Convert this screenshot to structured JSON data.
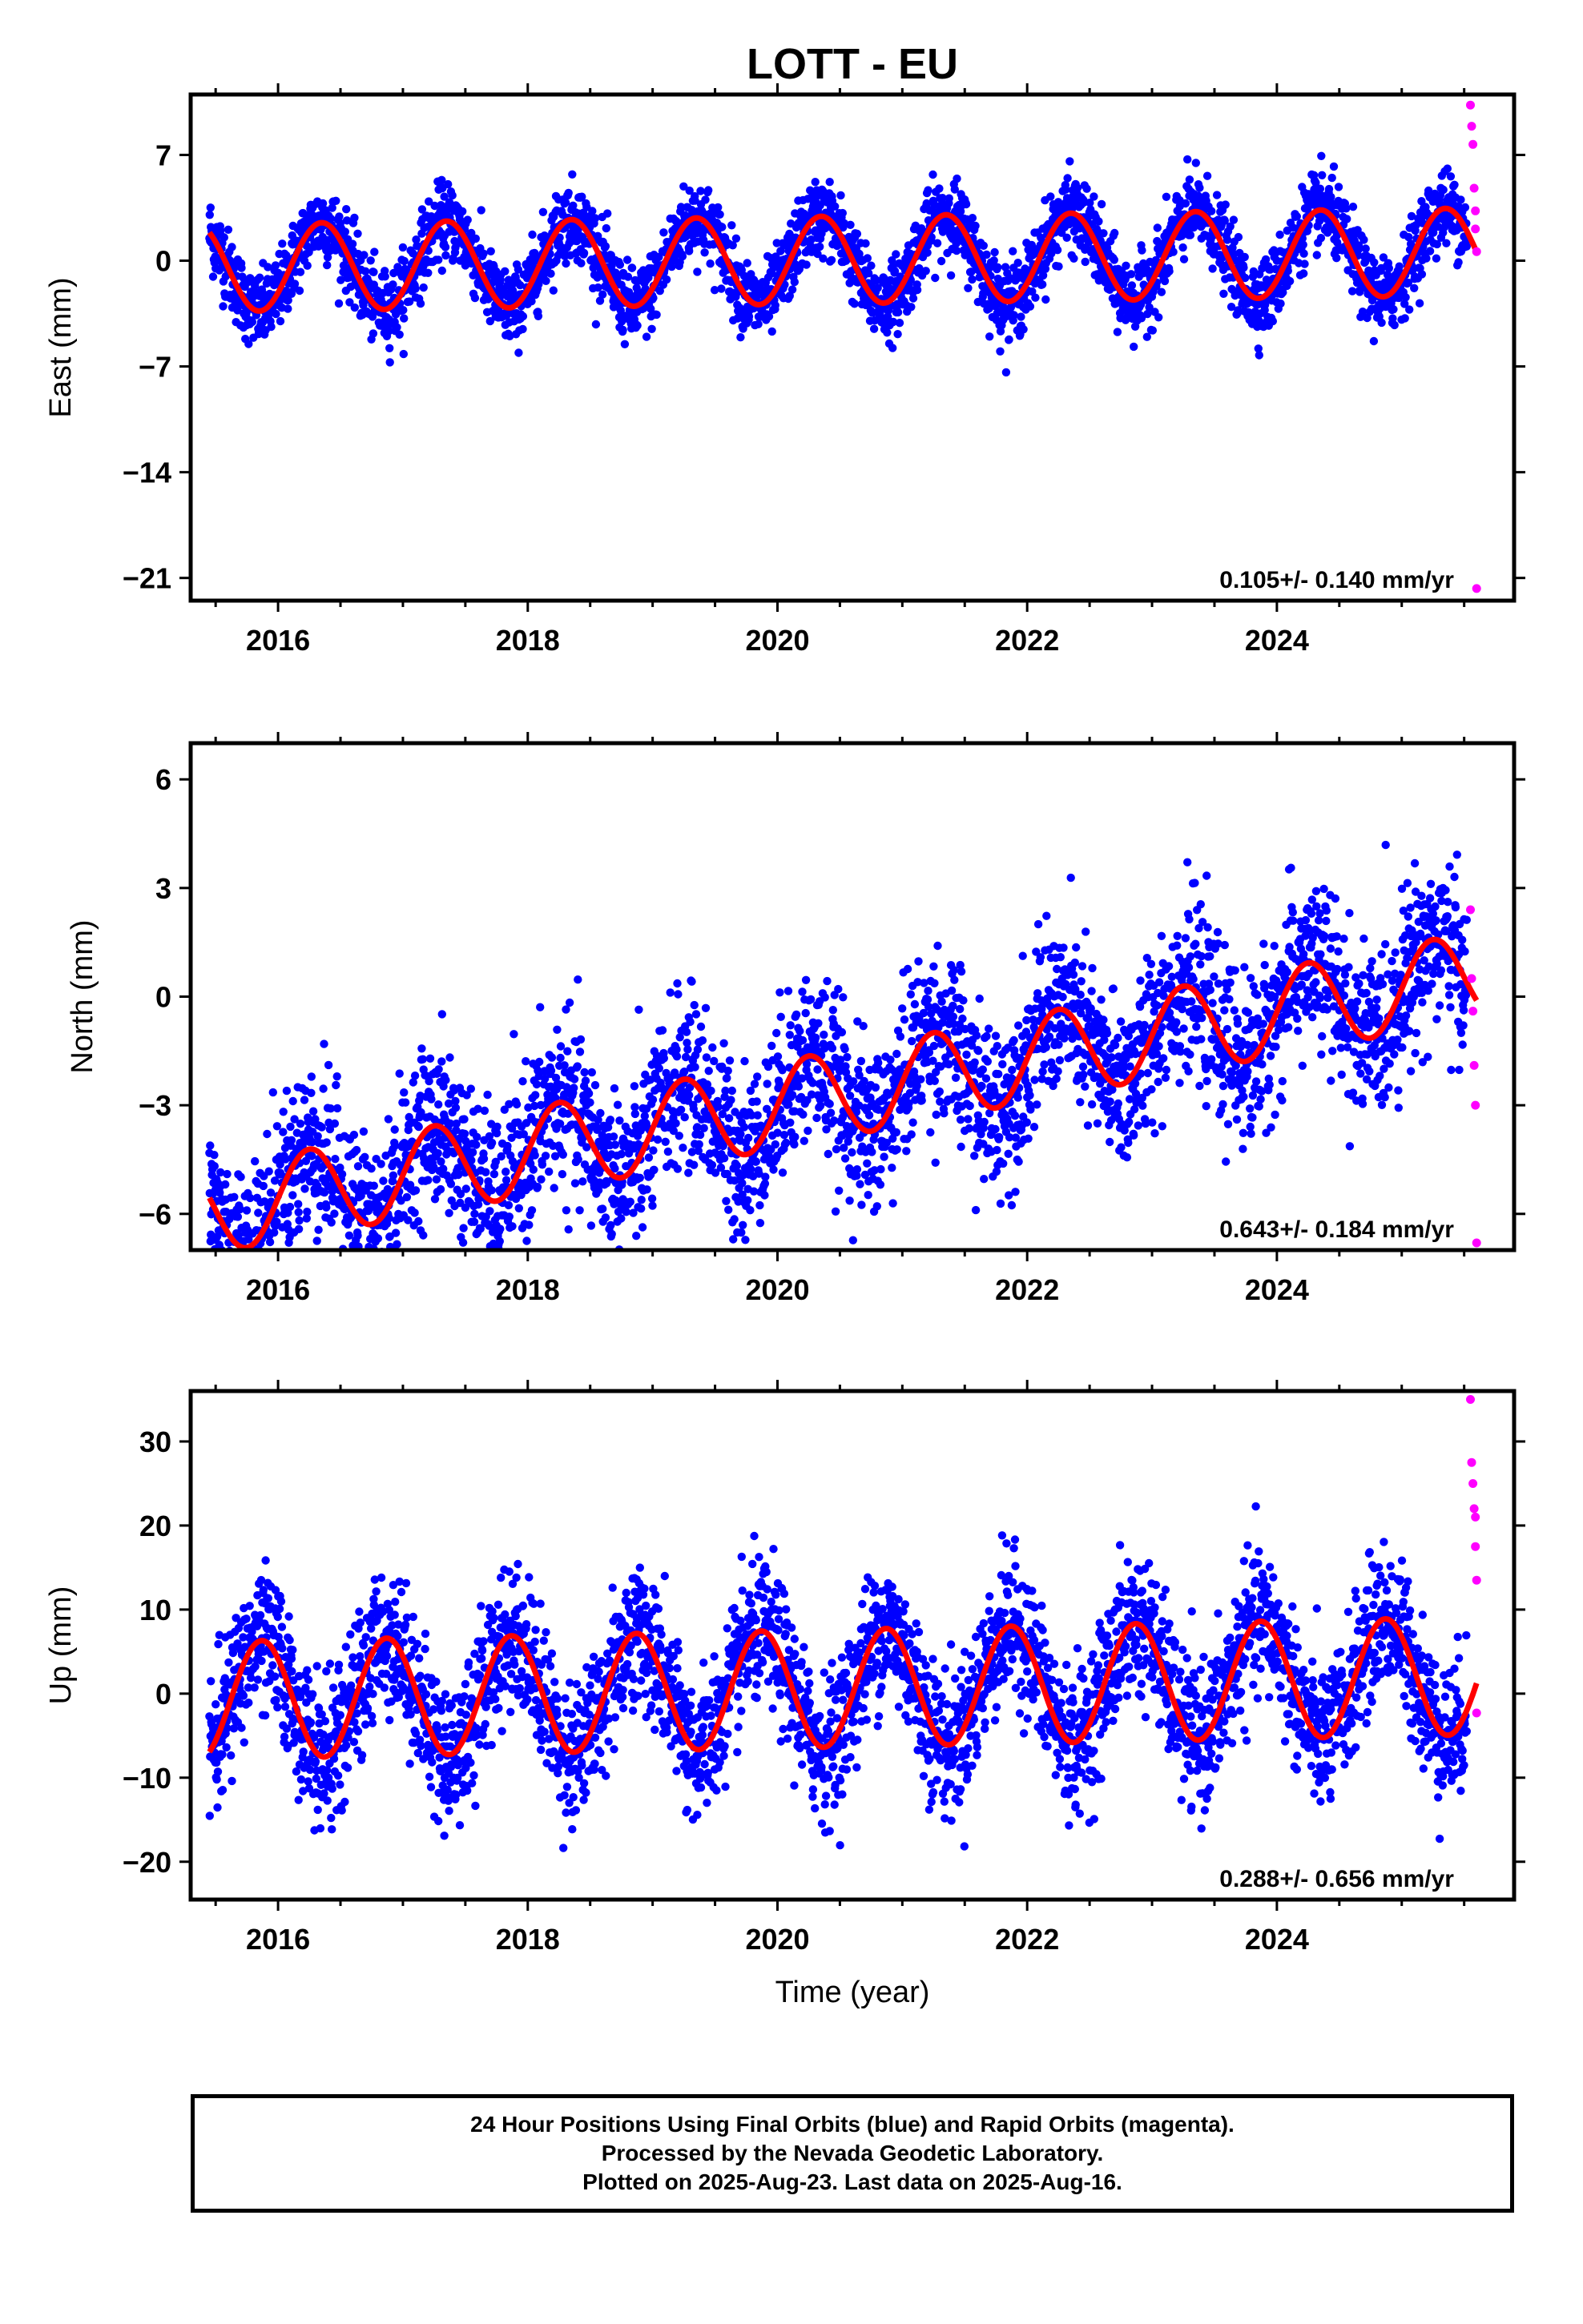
{
  "title": "LOTT - EU",
  "footer": {
    "line1": "24 Hour Positions Using Final Orbits (blue) and Rapid Orbits (magenta).",
    "line2": "Processed by the Nevada Geodetic Laboratory.",
    "line3": "Plotted on 2025-Aug-23. Last data on 2025-Aug-16."
  },
  "colors": {
    "final": "#0000ff",
    "rapid": "#ff00ff",
    "model": "#ff0000"
  },
  "chart_data": [
    {
      "type": "scatter",
      "ylabel": "East (mm)",
      "xlabel": "",
      "xlim": [
        2015.3,
        2025.9
      ],
      "ylim": [
        -22.5,
        11
      ],
      "yticks": [
        7,
        0,
        -7,
        -14,
        -21
      ],
      "ytick_labels": [
        "7",
        "0",
        "−7",
        "−14",
        "−21"
      ],
      "xticks": [
        2016,
        2018,
        2020,
        2022,
        2024
      ],
      "xtick_labels": [
        "2016",
        "2018",
        "2020",
        "2022",
        "2024"
      ],
      "rate": "0.105+/- 0.140 mm/yr",
      "final_orbits": {
        "x_start": 2015.45,
        "x_end": 2025.52,
        "count": 3400,
        "offset": 0.0,
        "trend": 0.105,
        "amplitude": 2.9,
        "phase": 0.1,
        "jitter": 1.25
      },
      "rapid_orbits": {
        "x": [
          2025.55,
          2025.56,
          2025.57,
          2025.58,
          2025.59,
          2025.59,
          2025.6,
          2025.6
        ],
        "y": [
          10.3,
          8.9,
          7.7,
          4.8,
          3.3,
          2.1,
          0.6,
          -21.7
        ]
      },
      "model": {
        "offset": 0.0,
        "trend": 0.105,
        "amplitude": 2.9,
        "phase": 0.1
      }
    },
    {
      "type": "scatter",
      "ylabel": "North (mm)",
      "xlabel": "",
      "xlim": [
        2015.3,
        2025.9
      ],
      "ylim": [
        -7,
        7
      ],
      "yticks": [
        6,
        3,
        0,
        -3,
        -6
      ],
      "ytick_labels": [
        "6",
        "3",
        "0",
        "−3",
        "−6"
      ],
      "xticks": [
        2016,
        2018,
        2020,
        2022,
        2024
      ],
      "xtick_labels": [
        "2016",
        "2018",
        "2020",
        "2022",
        "2024"
      ],
      "rate": "0.643+/- 0.184 mm/yr",
      "final_orbits": {
        "x_start": 2015.45,
        "x_end": 2025.52,
        "count": 3400,
        "offset": -3.0,
        "trend": 0.643,
        "amplitude": 1.2,
        "phase": 0.0,
        "jitter": 1.15
      },
      "rapid_orbits": {
        "x": [
          2025.55,
          2025.56,
          2025.57,
          2025.58,
          2025.59,
          2025.6
        ],
        "y": [
          2.4,
          0.5,
          -0.4,
          -1.9,
          -3.0,
          -6.8
        ]
      },
      "model": {
        "offset": -3.0,
        "trend": 0.643,
        "amplitude": 1.2,
        "phase": 0.0
      }
    },
    {
      "type": "scatter",
      "ylabel": "Up (mm)",
      "xlabel": "Time (year)",
      "xlim": [
        2015.3,
        2025.9
      ],
      "ylim": [
        -24.5,
        36
      ],
      "yticks": [
        30,
        20,
        10,
        0,
        -10,
        -20
      ],
      "ytick_labels": [
        "30",
        "20",
        "10",
        "0",
        "−10",
        "−20"
      ],
      "xticks": [
        2016,
        2018,
        2020,
        2022,
        2024
      ],
      "xtick_labels": [
        "2016",
        "2018",
        "2020",
        "2022",
        "2024"
      ],
      "rate": "0.288+/- 0.656 mm/yr",
      "final_orbits": {
        "x_start": 2015.45,
        "x_end": 2025.52,
        "count": 3400,
        "offset": 0.5,
        "trend": 0.288,
        "amplitude": 7.0,
        "phase": 0.62,
        "jitter": 4.2
      },
      "rapid_orbits": {
        "x": [
          2025.55,
          2025.56,
          2025.57,
          2025.58,
          2025.59,
          2025.59,
          2025.6,
          2025.6
        ],
        "y": [
          35.0,
          27.5,
          25.0,
          22.0,
          21.0,
          17.5,
          13.5,
          -2.3
        ]
      },
      "model": {
        "offset": 0.5,
        "trend": 0.288,
        "amplitude": 7.0,
        "phase": 0.62
      }
    }
  ]
}
